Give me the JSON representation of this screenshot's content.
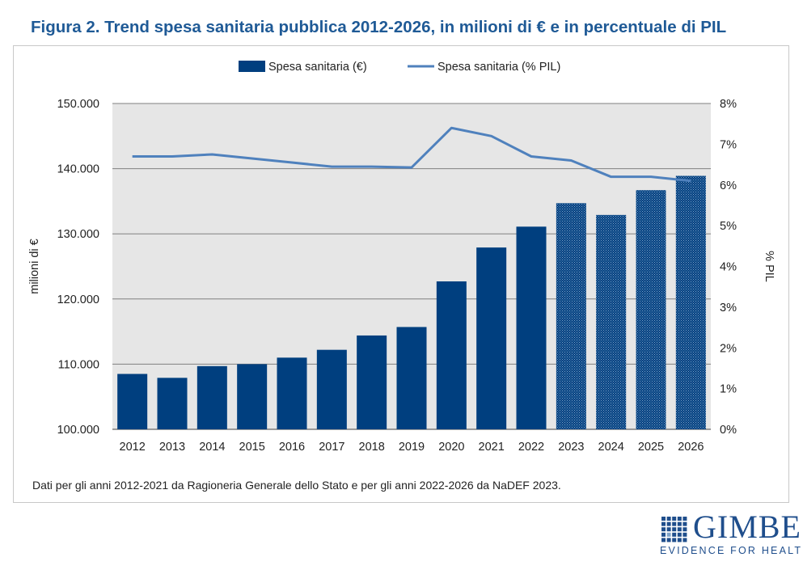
{
  "figure_title": "Figura 2. Trend spesa sanitaria pubblica 2012-2026, in milioni di € e in percentuale di PIL",
  "note": "Dati per gli anni 2012-2021 da Ragioneria Generale dello Stato e per gli anni 2022-2026 da NaDEF 2023.",
  "logo": {
    "name": "GIMBE",
    "tagline": "EVIDENCE FOR HEALTH"
  },
  "colors": {
    "bar": "#003f7f",
    "line": "#4f81bd",
    "plot_bg": "#e6e6e6",
    "title": "#1f5a96",
    "grid": "#808080"
  },
  "chart_data": {
    "type": "bar",
    "title": "",
    "categories": [
      "2012",
      "2013",
      "2014",
      "2015",
      "2016",
      "2017",
      "2018",
      "2019",
      "2020",
      "2021",
      "2022",
      "2023",
      "2024",
      "2025",
      "2026"
    ],
    "series": [
      {
        "name": "Spesa sanitaria (€)",
        "type": "bar",
        "axis": "left",
        "values": [
          108500,
          107900,
          109700,
          110000,
          111000,
          112200,
          114400,
          115700,
          122700,
          127900,
          131100,
          134700,
          132900,
          136700,
          138900
        ],
        "projected_from": "2023"
      },
      {
        "name": "Spesa sanitaria (% PIL)",
        "type": "line",
        "axis": "right",
        "values": [
          6.7,
          6.7,
          6.75,
          6.65,
          6.55,
          6.45,
          6.45,
          6.43,
          7.4,
          7.2,
          6.7,
          6.6,
          6.2,
          6.2,
          6.1
        ]
      }
    ],
    "ylabel": "milioni di €",
    "y2label": "% PIL",
    "ylim": [
      100000,
      150000
    ],
    "y2lim": [
      0,
      8
    ],
    "yticks": [
      "100.000",
      "110.000",
      "120.000",
      "130.000",
      "140.000",
      "150.000"
    ],
    "y2ticks": [
      "0%",
      "1%",
      "2%",
      "3%",
      "4%",
      "5%",
      "6%",
      "7%",
      "8%"
    ],
    "grid": true,
    "legend": "top"
  }
}
